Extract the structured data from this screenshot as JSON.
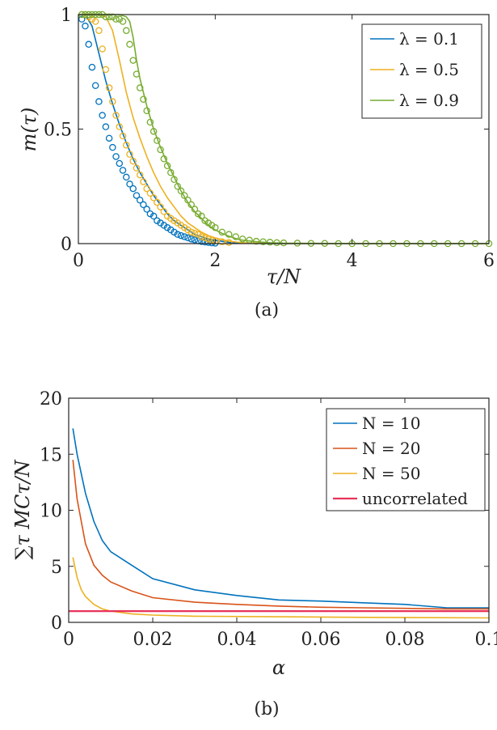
{
  "chart_data": [
    {
      "type": "line",
      "caption": "(a)",
      "xlabel": "τ/N",
      "ylabel": "m(τ)",
      "xlim": [
        0,
        6
      ],
      "ylim": [
        0,
        1
      ],
      "xticks": [
        "0",
        "2",
        "4",
        "6"
      ],
      "yticks": [
        "0",
        "0.5",
        "1"
      ],
      "grid": false,
      "legend_position": "top-right",
      "series": [
        {
          "name": "λ = 0.1",
          "color": "#0072BD",
          "line": {
            "x": [
              0,
              0.1,
              0.2,
              0.3,
              0.4,
              0.5,
              0.6,
              0.7,
              0.8,
              0.9,
              1.0,
              1.1,
              1.2,
              1.3,
              1.4,
              1.5,
              1.6,
              1.7,
              1.8,
              1.9,
              2.0,
              2.1,
              2.2,
              2.3,
              2.5,
              3.0,
              4.0,
              6.0
            ],
            "y": [
              1.0,
              1.0,
              0.95,
              0.83,
              0.71,
              0.61,
              0.52,
              0.44,
              0.37,
              0.31,
              0.26,
              0.21,
              0.17,
              0.13,
              0.1,
              0.08,
              0.06,
              0.04,
              0.03,
              0.02,
              0.015,
              0.01,
              0.005,
              0.003,
              0.001,
              0,
              0,
              0
            ]
          },
          "markers": {
            "x": [
              0.05,
              0.1,
              0.15,
              0.2,
              0.25,
              0.3,
              0.35,
              0.4,
              0.45,
              0.5,
              0.55,
              0.6,
              0.65,
              0.7,
              0.75,
              0.8,
              0.85,
              0.9,
              0.95,
              1.0,
              1.05,
              1.1,
              1.15,
              1.2,
              1.25,
              1.3,
              1.35,
              1.4,
              1.45,
              1.5,
              1.55,
              1.6,
              1.65,
              1.7,
              1.75,
              1.8,
              1.85,
              1.9,
              1.95,
              2.0
            ],
            "y": [
              0.98,
              0.95,
              0.87,
              0.77,
              0.69,
              0.62,
              0.56,
              0.51,
              0.46,
              0.42,
              0.38,
              0.35,
              0.32,
              0.29,
              0.26,
              0.24,
              0.21,
              0.19,
              0.17,
              0.15,
              0.13,
              0.12,
              0.1,
              0.09,
              0.08,
              0.07,
              0.06,
              0.05,
              0.04,
              0.035,
              0.03,
              0.025,
              0.02,
              0.016,
              0.012,
              0.009,
              0.007,
              0.005,
              0.003,
              0.002
            ]
          }
        },
        {
          "name": "λ = 0.5",
          "color": "#EDB120",
          "line": {
            "x": [
              0,
              0.2,
              0.3,
              0.4,
              0.5,
              0.6,
              0.7,
              0.8,
              0.9,
              1.0,
              1.1,
              1.2,
              1.3,
              1.4,
              1.5,
              1.6,
              1.7,
              1.8,
              1.9,
              2.0,
              2.1,
              2.2,
              2.3,
              2.4,
              2.6,
              3.0,
              4.0,
              6.0
            ],
            "y": [
              1.0,
              1.0,
              1.0,
              0.99,
              0.93,
              0.8,
              0.66,
              0.55,
              0.46,
              0.38,
              0.31,
              0.25,
              0.2,
              0.16,
              0.12,
              0.09,
              0.07,
              0.05,
              0.035,
              0.025,
              0.017,
              0.011,
              0.007,
              0.004,
              0.002,
              0,
              0,
              0
            ]
          },
          "markers": {
            "x": [
              0.05,
              0.1,
              0.15,
              0.2,
              0.25,
              0.3,
              0.35,
              0.4,
              0.45,
              0.5,
              0.55,
              0.6,
              0.65,
              0.7,
              0.75,
              0.8,
              0.85,
              0.9,
              0.95,
              1.0,
              1.05,
              1.1,
              1.15,
              1.2,
              1.25,
              1.3,
              1.35,
              1.4,
              1.45,
              1.5,
              1.55,
              1.6,
              1.65,
              1.7,
              1.75,
              1.8,
              1.85,
              1.9,
              1.95,
              2.0,
              2.1,
              2.2
            ],
            "y": [
              1.0,
              1.0,
              0.99,
              0.98,
              0.97,
              0.93,
              0.85,
              0.76,
              0.68,
              0.62,
              0.56,
              0.51,
              0.47,
              0.43,
              0.39,
              0.36,
              0.33,
              0.3,
              0.27,
              0.24,
              0.22,
              0.2,
              0.18,
              0.16,
              0.14,
              0.12,
              0.11,
              0.1,
              0.09,
              0.08,
              0.07,
              0.06,
              0.05,
              0.045,
              0.04,
              0.03,
              0.025,
              0.02,
              0.015,
              0.012,
              0.008,
              0.005
            ]
          }
        },
        {
          "name": "λ = 0.9",
          "color": "#77AC30",
          "line": {
            "x": [
              0,
              0.4,
              0.6,
              0.7,
              0.75,
              0.8,
              0.85,
              0.9,
              1.0,
              1.1,
              1.2,
              1.3,
              1.4,
              1.5,
              1.6,
              1.7,
              1.8,
              1.9,
              2.0,
              2.1,
              2.2,
              2.3,
              2.4,
              2.6,
              2.8,
              3.0,
              4.0,
              6.0
            ],
            "y": [
              1.0,
              1.0,
              1.0,
              0.99,
              0.97,
              0.9,
              0.8,
              0.72,
              0.6,
              0.5,
              0.42,
              0.35,
              0.29,
              0.23,
              0.18,
              0.14,
              0.11,
              0.08,
              0.06,
              0.045,
              0.032,
              0.022,
              0.015,
              0.008,
              0.004,
              0.002,
              0,
              0
            ]
          },
          "markers": {
            "x": [
              0.05,
              0.1,
              0.15,
              0.2,
              0.25,
              0.3,
              0.35,
              0.4,
              0.45,
              0.5,
              0.55,
              0.6,
              0.65,
              0.7,
              0.75,
              0.8,
              0.85,
              0.9,
              0.95,
              1.0,
              1.05,
              1.1,
              1.15,
              1.2,
              1.25,
              1.3,
              1.35,
              1.4,
              1.45,
              1.5,
              1.55,
              1.6,
              1.65,
              1.7,
              1.75,
              1.8,
              1.85,
              1.9,
              1.95,
              2.0,
              2.1,
              2.2,
              2.3,
              2.4,
              2.5,
              2.6,
              2.7,
              2.8,
              2.9,
              3.0,
              3.2,
              3.4,
              3.6,
              3.8,
              4.0,
              4.2,
              4.4,
              4.6,
              4.8,
              5.0,
              5.2,
              5.4,
              5.6,
              5.8,
              6.0
            ],
            "y": [
              1.0,
              1.0,
              1.0,
              1.0,
              1.0,
              1.0,
              1.0,
              0.99,
              0.99,
              0.99,
              0.98,
              0.98,
              0.97,
              0.93,
              0.87,
              0.8,
              0.74,
              0.68,
              0.63,
              0.58,
              0.53,
              0.49,
              0.45,
              0.41,
              0.37,
              0.34,
              0.31,
              0.28,
              0.25,
              0.23,
              0.21,
              0.19,
              0.17,
              0.15,
              0.13,
              0.12,
              0.1,
              0.09,
              0.08,
              0.07,
              0.05,
              0.04,
              0.03,
              0.02,
              0.015,
              0.01,
              0.008,
              0.006,
              0.004,
              0.003,
              0.002,
              0.001,
              0.001,
              0,
              0,
              0,
              0,
              0,
              0,
              0,
              0,
              0,
              0,
              0,
              0
            ]
          }
        }
      ]
    },
    {
      "type": "line",
      "caption": "(b)",
      "xlabel": "α",
      "ylabel": "∑τ MCτ/N",
      "xlim": [
        0,
        0.1
      ],
      "ylim": [
        0,
        20
      ],
      "xticks": [
        "0",
        "0.02",
        "0.04",
        "0.06",
        "0.08",
        "0.1"
      ],
      "yticks": [
        "0",
        "5",
        "10",
        "15",
        "20"
      ],
      "grid": false,
      "legend_position": "top-right",
      "series": [
        {
          "name": "N = 10",
          "color": "#0072BD",
          "x": [
            0.001,
            0.002,
            0.004,
            0.006,
            0.008,
            0.01,
            0.015,
            0.02,
            0.03,
            0.04,
            0.05,
            0.06,
            0.07,
            0.08,
            0.09,
            0.1
          ],
          "y": [
            17.3,
            15.0,
            11.5,
            9.0,
            7.3,
            6.3,
            5.1,
            3.9,
            2.9,
            2.4,
            2.0,
            1.9,
            1.75,
            1.6,
            1.3,
            1.3
          ]
        },
        {
          "name": "N = 20",
          "color": "#D95319",
          "x": [
            0.001,
            0.002,
            0.004,
            0.006,
            0.008,
            0.01,
            0.015,
            0.02,
            0.03,
            0.04,
            0.05,
            0.06,
            0.07,
            0.08,
            0.09,
            0.1
          ],
          "y": [
            14.5,
            11.0,
            7.0,
            5.1,
            4.2,
            3.6,
            2.8,
            2.2,
            1.8,
            1.6,
            1.45,
            1.35,
            1.3,
            1.25,
            1.2,
            1.2
          ]
        },
        {
          "name": "N = 50",
          "color": "#EDB120",
          "x": [
            0.001,
            0.002,
            0.003,
            0.004,
            0.006,
            0.008,
            0.01,
            0.015,
            0.02,
            0.03,
            0.05,
            0.07,
            0.1
          ],
          "y": [
            5.8,
            4.0,
            2.9,
            2.3,
            1.6,
            1.2,
            1.0,
            0.75,
            0.65,
            0.55,
            0.5,
            0.45,
            0.4
          ]
        },
        {
          "name": "uncorrelated",
          "color": "#E8335A",
          "x": [
            0,
            0.1
          ],
          "y": [
            1.0,
            1.0
          ]
        }
      ]
    }
  ]
}
